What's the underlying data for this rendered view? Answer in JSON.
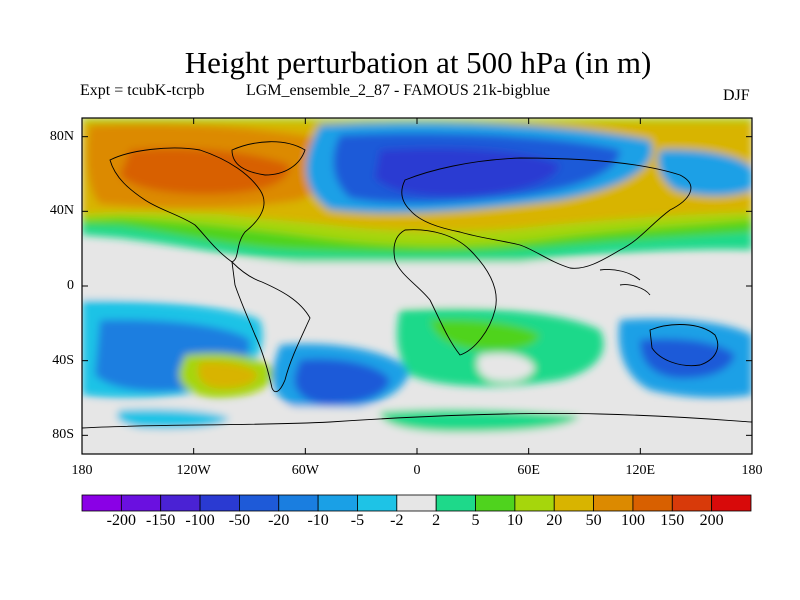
{
  "title": "Height perturbation at 500 hPa (in m)",
  "experiment_label": "Expt = tcubK-tcrpb",
  "ensemble_label": "LGM_ensemble_2_87 - FAMOUS 21k-bigblue",
  "season_label": "DJF",
  "map": {
    "lat_ticks": [
      "80N",
      "40N",
      "0",
      "40S",
      "80S"
    ],
    "lon_ticks": [
      "180",
      "120W",
      "60W",
      "0",
      "60E",
      "120E",
      "180"
    ],
    "lat_tick_values": [
      80,
      40,
      0,
      -40,
      -80
    ],
    "lon_tick_values": [
      -180,
      -120,
      -60,
      0,
      60,
      120,
      180
    ],
    "lon_range": [
      -180,
      180
    ],
    "lat_range": [
      -90,
      90
    ],
    "land_color": "#000000",
    "background_color": "#e6e6e6"
  },
  "colorbar": {
    "colors": [
      "#8a00e6",
      "#6a10e0",
      "#4a22d4",
      "#2a3ad2",
      "#1e5ad8",
      "#1a7ee0",
      "#1aa0e6",
      "#1ec3e6",
      "#e6e6e6",
      "#1ed98a",
      "#4fd31e",
      "#a6d60c",
      "#d8b400",
      "#dc8a00",
      "#d86000",
      "#d83a0a",
      "#d80a0a"
    ],
    "labels": [
      "-200",
      "-150",
      "-100",
      "-50",
      "-20",
      "-10",
      "-5",
      "-2",
      "2",
      "5",
      "10",
      "20",
      "50",
      "100",
      "150",
      "200"
    ]
  }
}
